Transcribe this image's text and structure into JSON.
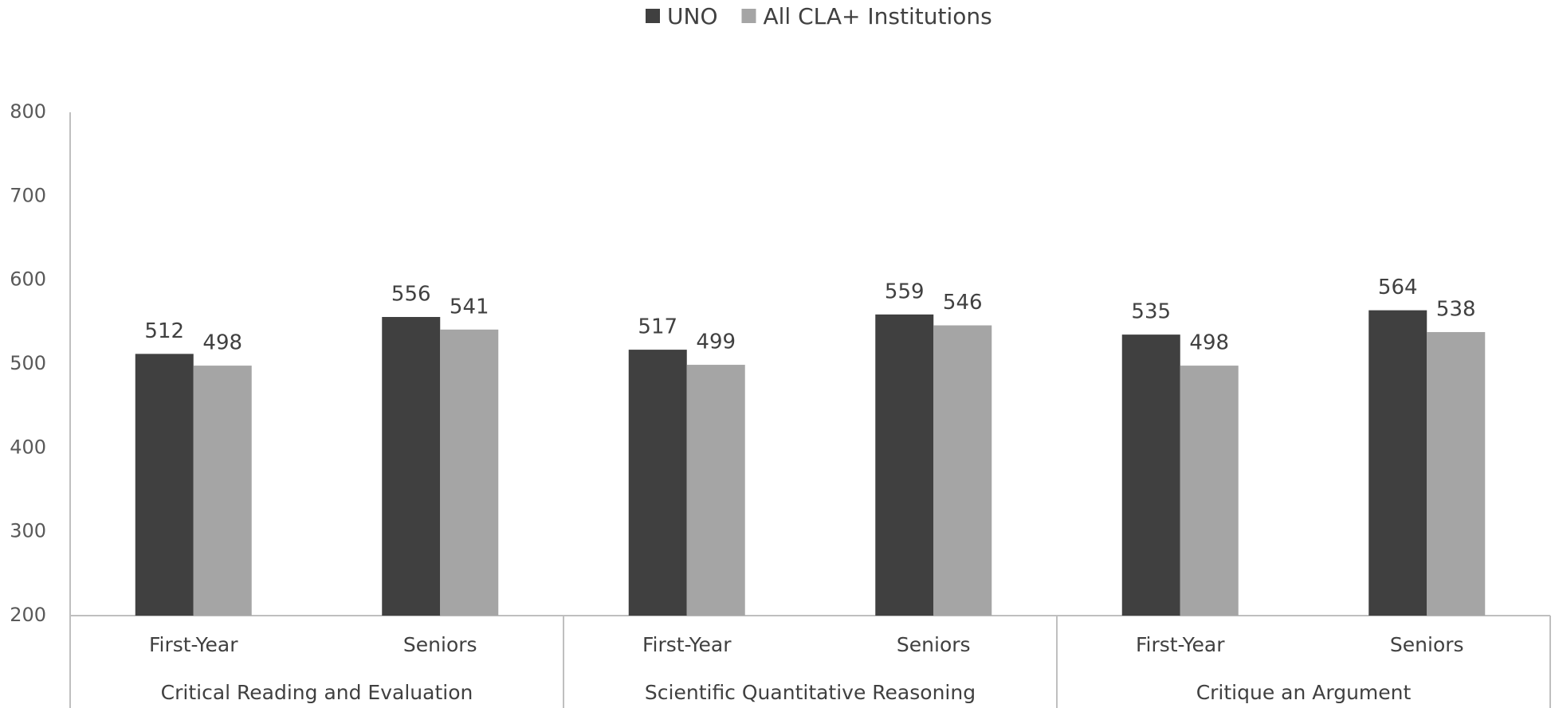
{
  "chart_data": {
    "type": "bar",
    "categories": [
      "First-Year",
      "Seniors",
      "First-Year",
      "Seniors",
      "First-Year",
      "Seniors"
    ],
    "category_groups": [
      "Critical Reading and Evaluation",
      "Scientific Quantitative Reasoning",
      "Critique an Argument"
    ],
    "series": [
      {
        "name": "UNO",
        "color": "#404040",
        "values": [
          512,
          556,
          517,
          559,
          535,
          564
        ]
      },
      {
        "name": "All CLA+ Institutions",
        "color": "#a5a5a5",
        "values": [
          498,
          541,
          499,
          546,
          498,
          538
        ]
      }
    ],
    "ylim": [
      200,
      800
    ],
    "yticks": [
      200,
      300,
      400,
      500,
      600,
      700,
      800
    ],
    "legend": "top",
    "grid": false
  }
}
